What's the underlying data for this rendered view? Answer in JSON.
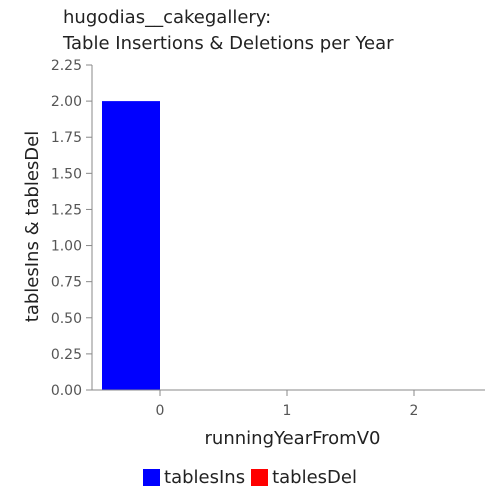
{
  "title_line1": "hugodias__cakegallery:",
  "title_line2": "Table Insertions & Deletions per Year",
  "chart_data": {
    "type": "bar",
    "xlabel": "runningYearFromV0",
    "ylabel": "tablesIns & tablesDel",
    "categories": [
      "0",
      "1",
      "2"
    ],
    "ylim": [
      0,
      2.25
    ],
    "yticks": [
      "0.00",
      "0.25",
      "0.50",
      "0.75",
      "1.00",
      "1.25",
      "1.50",
      "1.75",
      "2.00",
      "2.25"
    ],
    "series": [
      {
        "name": "tablesIns",
        "color": "#0000ff",
        "values": [
          2,
          0,
          0
        ]
      },
      {
        "name": "tablesDel",
        "color": "#ff0000",
        "values": [
          0,
          0,
          0
        ]
      }
    ],
    "grid": false,
    "legend": "bottom"
  }
}
